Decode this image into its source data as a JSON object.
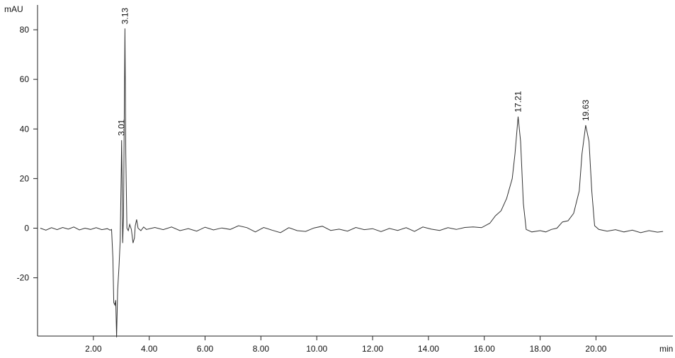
{
  "chart_data": {
    "type": "line",
    "x_label": "min",
    "y_label": "mAU",
    "xlim": [
      0,
      22.5
    ],
    "ylim": [
      -43.5,
      90
    ],
    "xticks": [
      {
        "value": 2,
        "label": "2.00"
      },
      {
        "value": 4,
        "label": "4.00"
      },
      {
        "value": 6,
        "label": "6.00"
      },
      {
        "value": 8,
        "label": "8.00"
      },
      {
        "value": 10,
        "label": "10.00"
      },
      {
        "value": 12,
        "label": "12.00"
      },
      {
        "value": 14,
        "label": "14.00"
      },
      {
        "value": 16,
        "label": "16.00"
      },
      {
        "value": 18,
        "label": "18.00"
      },
      {
        "value": 20,
        "label": "20.00"
      }
    ],
    "yticks": [
      -20,
      0,
      20,
      40,
      60,
      80
    ],
    "color": "#333333",
    "x": [
      0.1,
      0.3,
      0.5,
      0.7,
      0.9,
      1.1,
      1.3,
      1.5,
      1.7,
      1.9,
      2.1,
      2.3,
      2.5,
      2.6,
      2.65,
      2.7,
      2.73,
      2.77,
      2.8,
      2.83,
      2.87,
      2.92,
      2.96,
      3.0,
      3.01,
      3.03,
      3.05,
      3.08,
      3.13,
      3.16,
      3.2,
      3.25,
      3.3,
      3.36,
      3.42,
      3.47,
      3.5,
      3.55,
      3.6,
      3.7,
      3.8,
      3.9,
      4.2,
      4.5,
      4.8,
      5.1,
      5.4,
      5.7,
      6.0,
      6.3,
      6.6,
      6.9,
      7.2,
      7.5,
      7.8,
      8.1,
      8.4,
      8.7,
      9.0,
      9.3,
      9.6,
      9.9,
      10.2,
      10.5,
      10.8,
      11.1,
      11.4,
      11.7,
      12.0,
      12.3,
      12.6,
      12.9,
      13.2,
      13.5,
      13.8,
      14.1,
      14.4,
      14.7,
      15.0,
      15.3,
      15.6,
      15.9,
      16.2,
      16.4,
      16.6,
      16.8,
      17.0,
      17.1,
      17.21,
      17.3,
      17.4,
      17.5,
      17.7,
      18.0,
      18.2,
      18.4,
      18.6,
      18.8,
      19.0,
      19.2,
      19.4,
      19.5,
      19.63,
      19.75,
      19.85,
      19.95,
      20.1,
      20.4,
      20.7,
      21.0,
      21.3,
      21.6,
      21.9,
      22.2,
      22.4
    ],
    "values": [
      0,
      -0.8,
      0.2,
      -0.6,
      0.3,
      -0.4,
      0.5,
      -0.7,
      0,
      -0.5,
      0.2,
      -0.6,
      -0.2,
      -0.8,
      -0.5,
      -12,
      -30,
      -31,
      -29,
      -44,
      -25,
      -15,
      -5,
      25,
      35.5,
      20,
      -6,
      5,
      80.5,
      30,
      0,
      -1,
      1.5,
      -0.5,
      -6,
      -4,
      1,
      3.5,
      0,
      -1,
      0.5,
      -0.5,
      0.3,
      -0.6,
      0.5,
      -1,
      -0.2,
      -1.2,
      0.4,
      -0.7,
      0.1,
      -0.5,
      1,
      0.2,
      -1.5,
      0.3,
      -0.8,
      -1.8,
      0.2,
      -1,
      -1.3,
      0.1,
      0.8,
      -0.9,
      -0.4,
      -1.2,
      0.3,
      -0.6,
      -0.2,
      -1.4,
      -0.1,
      -0.9,
      0.2,
      -1.3,
      0.5,
      -0.4,
      -0.9,
      0.2,
      -0.5,
      0.3,
      0.5,
      0.2,
      2,
      5,
      7,
      12,
      20,
      30,
      45,
      35,
      10,
      -0.5,
      -1.5,
      -1,
      -1.5,
      -0.5,
      0,
      2.5,
      3,
      6,
      15,
      30,
      41.5,
      35,
      15,
      1,
      -0.5,
      -1.2,
      -0.6,
      -1.5,
      -0.8,
      -1.8,
      -1,
      -1.6,
      -1.3
    ],
    "peaks": [
      {
        "x": 3.01,
        "y": 35.5
      },
      {
        "x": 3.13,
        "y": 80.5
      },
      {
        "x": 17.21,
        "y": 45
      },
      {
        "x": 19.63,
        "y": 41.5
      }
    ]
  }
}
